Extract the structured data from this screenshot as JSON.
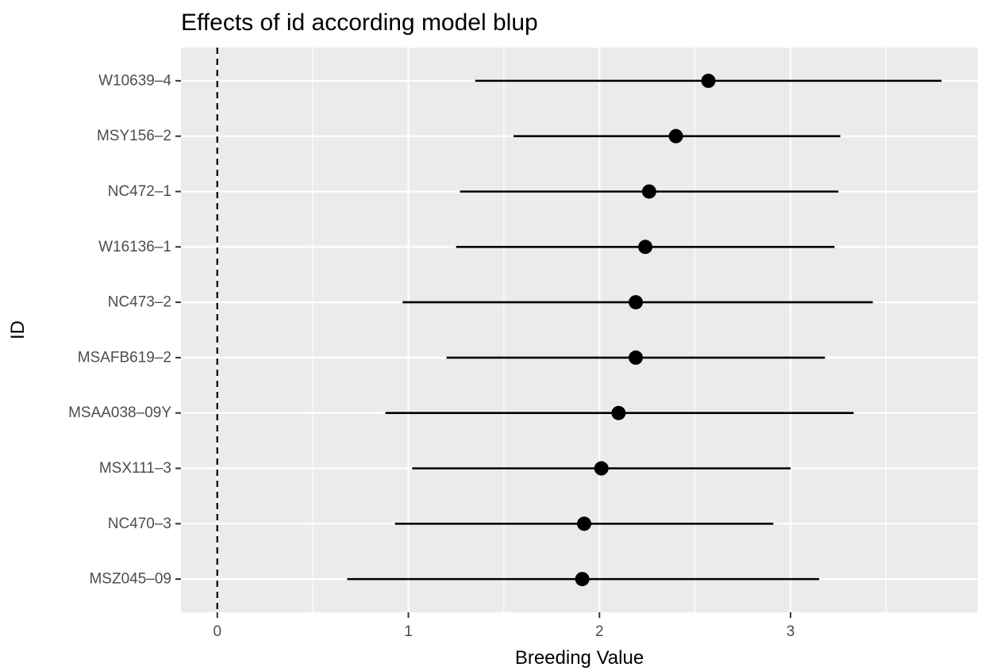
{
  "chart_data": {
    "type": "scatter",
    "title": "Effects of id according model blup",
    "xlabel": "Breeding Value",
    "ylabel": "ID",
    "xlim": [
      -0.19,
      3.98
    ],
    "xticks": [
      0,
      1,
      2,
      3
    ],
    "grid": true,
    "legend": "none",
    "reference_line": {
      "x": 0,
      "style": "dashed"
    },
    "categories": [
      "W10639–4",
      "MSY156–2",
      "NC472–1",
      "W16136–1",
      "NC473–2",
      "MSAFB619–2",
      "MSAA038–09Y",
      "MSX111–3",
      "NC470–3",
      "MSZ045–09"
    ],
    "series": [
      {
        "values": [
          2.57,
          2.4,
          2.26,
          2.24,
          2.19,
          2.19,
          2.1,
          2.01,
          1.92,
          1.91
        ],
        "lower": [
          1.35,
          1.55,
          1.27,
          1.25,
          0.97,
          1.2,
          0.88,
          1.02,
          0.93,
          0.68
        ],
        "upper": [
          3.79,
          3.26,
          3.25,
          3.23,
          3.43,
          3.18,
          3.33,
          3.0,
          2.91,
          3.15
        ]
      }
    ],
    "colors": {
      "panel": "#ebebeb",
      "grid": "#ffffff",
      "marks": "#000000",
      "tick_text": "#4d4d4d"
    }
  }
}
